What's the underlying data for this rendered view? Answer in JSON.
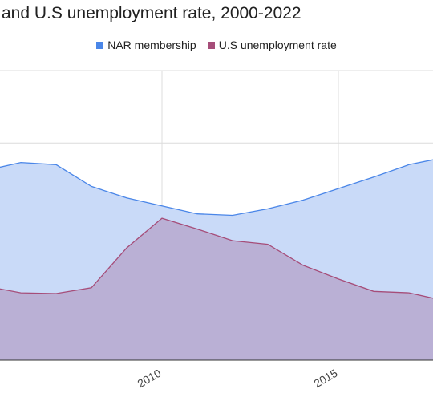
{
  "chart_data": {
    "type": "area",
    "title": "and U.S unemployment rate, 2000-2022",
    "x": [
      2005,
      2006,
      2007,
      2008,
      2009,
      2010,
      2011,
      2012,
      2013,
      2014,
      2015,
      2016,
      2017,
      2018
    ],
    "x_tick_labels": [
      "2010",
      "2015"
    ],
    "xlim": [
      2005,
      2018
    ],
    "ylim": [
      0,
      4
    ],
    "grid": true,
    "legend_position": "top",
    "series": [
      {
        "name": "NAR membership",
        "color": "#4a86e8",
        "fill": "#c9daf8",
        "values": [
          2.62,
          2.73,
          2.7,
          2.4,
          2.24,
          2.13,
          2.02,
          2.0,
          2.09,
          2.21,
          2.37,
          2.53,
          2.7,
          2.8
        ]
      },
      {
        "name": "U.S unemployment rate",
        "color": "#a64d79",
        "fill": "#b7a8cf",
        "values": [
          1.02,
          0.93,
          0.92,
          1.0,
          1.55,
          1.96,
          1.81,
          1.65,
          1.6,
          1.31,
          1.12,
          0.95,
          0.93,
          0.82
        ]
      }
    ]
  }
}
